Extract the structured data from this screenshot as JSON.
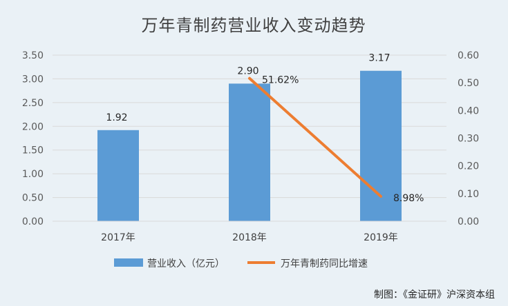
{
  "chart_data": {
    "type": "bar",
    "title": "万年青制药营业收入变动趋势",
    "categories": [
      "2017年",
      "2018年",
      "2019年"
    ],
    "series": [
      {
        "name": "营业收入（亿元）",
        "type": "bar",
        "axis": "left",
        "values": [
          1.92,
          2.9,
          3.17
        ],
        "labels": [
          "1.92",
          "2.90",
          "3.17"
        ]
      },
      {
        "name": "万年青制药同比增速",
        "type": "line",
        "axis": "right",
        "x": [
          "2018年",
          "2019年"
        ],
        "values": [
          0.5162,
          0.0898
        ],
        "labels": [
          "51.62%",
          "8.98%"
        ]
      }
    ],
    "y_left": {
      "lim": [
        0,
        3.5
      ],
      "ticks": [
        "0.00",
        "0.50",
        "1.00",
        "1.50",
        "2.00",
        "2.50",
        "3.00",
        "3.50"
      ]
    },
    "y_right": {
      "lim": [
        0,
        0.6
      ],
      "ticks": [
        "0.00",
        "0.10",
        "0.20",
        "0.30",
        "0.40",
        "0.50",
        "0.60"
      ]
    },
    "grid": true,
    "legend": "bottom",
    "colors": {
      "bar": "#5b9bd5",
      "line": "#ed7d31",
      "grid": "#d9d9d9",
      "background": "#eaf1f6"
    }
  },
  "source_text": "制图：《金证研》沪深资本组"
}
